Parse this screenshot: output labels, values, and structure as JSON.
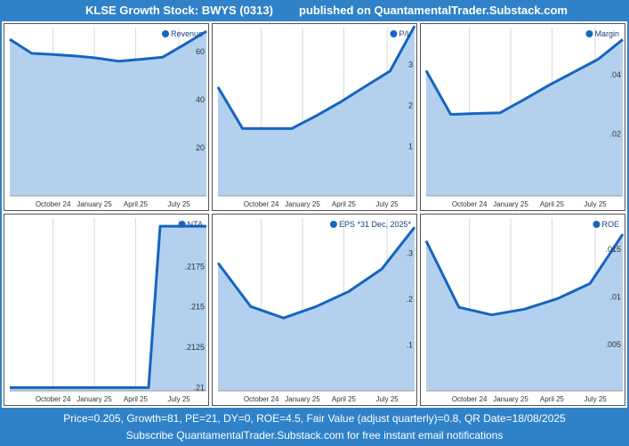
{
  "header": {
    "title": "KLSE Growth Stock: BWYS (0313)",
    "published": "published on QuantamentalTrader.Substack.com"
  },
  "footer": {
    "line1": "Price=0.205, Growth=81, PE=21, DY=0, ROE=4.5, Fair Value (adjust quarterly)=0.8, QR Date=18/08/2025",
    "line2": "Subscribe QuantamentalTrader.Substack.com for free instant email notifications"
  },
  "colors": {
    "line": "#1565c0",
    "fill": "#b3d1ef",
    "legend_dot": "#1565c0",
    "grid": "#d9d9d9",
    "frame": "#2f82c8"
  },
  "chart_data": [
    {
      "type": "area",
      "legend": "Revenue",
      "x_ticks": [
        "October 24",
        "January 25",
        "April 25",
        "July 25"
      ],
      "y_ticks": [
        "20",
        "40",
        "60"
      ],
      "ylim": [
        0,
        70
      ],
      "values": [
        65.1,
        59.3,
        58.8,
        58.2,
        57.3,
        56.0,
        56.8,
        57.7,
        63.0,
        68.5
      ]
    },
    {
      "type": "area",
      "legend": "P/L",
      "x_ticks": [
        "October 24",
        "January 25",
        "April 25",
        "July 25"
      ],
      "y_ticks": [
        "1",
        "2",
        "3"
      ],
      "ylim": [
        -0.2,
        3.9
      ],
      "values": [
        2.45,
        1.44,
        1.44,
        1.44,
        1.75,
        2.09,
        2.47,
        2.84,
        3.94
      ]
    },
    {
      "type": "area",
      "legend": "Margin",
      "x_ticks": [
        "October 24",
        "January 25",
        "April 25",
        "July 25"
      ],
      "y_ticks": [
        ".02",
        ".04"
      ],
      "ylim": [
        -0.001,
        0.056
      ],
      "values": [
        0.0414,
        0.0266,
        0.0269,
        0.0271,
        0.0317,
        0.0365,
        0.0409,
        0.0453,
        0.052
      ]
    },
    {
      "type": "area",
      "legend": "NTA",
      "x_ticks": [
        "October 24",
        "January 25",
        "April 25",
        "July 25"
      ],
      "y_ticks": [
        ".21",
        ".2125",
        ".215",
        ".2175"
      ],
      "ylim": [
        0.2098,
        0.2205
      ],
      "values": [
        0.21,
        0.21,
        0.21,
        0.21,
        0.21,
        0.21,
        0.21,
        0.21,
        0.21,
        0.21,
        0.21,
        0.21,
        0.21,
        0.22,
        0.22,
        0.22,
        0.22,
        0.22
      ]
    },
    {
      "type": "area",
      "legend": "EPS *31 Dec, 2025*",
      "x_ticks": [
        "October 24",
        "January 25",
        "April 25",
        "July 25"
      ],
      "y_ticks": [
        ".1",
        ".2",
        ".3"
      ],
      "ylim": [
        0,
        0.377
      ],
      "values": [
        0.279,
        0.184,
        0.159,
        0.184,
        0.217,
        0.266,
        0.357
      ]
    },
    {
      "type": "area",
      "legend": "ROE",
      "x_ticks": [
        "October 24",
        "January 25",
        "April 25",
        "July 25"
      ],
      "y_ticks": [
        ".005",
        ".01",
        ".015"
      ],
      "ylim": [
        0.0001,
        0.0183
      ],
      "values": [
        0.0159,
        0.0089,
        0.0081,
        0.0087,
        0.0098,
        0.0114,
        0.0166
      ]
    }
  ]
}
